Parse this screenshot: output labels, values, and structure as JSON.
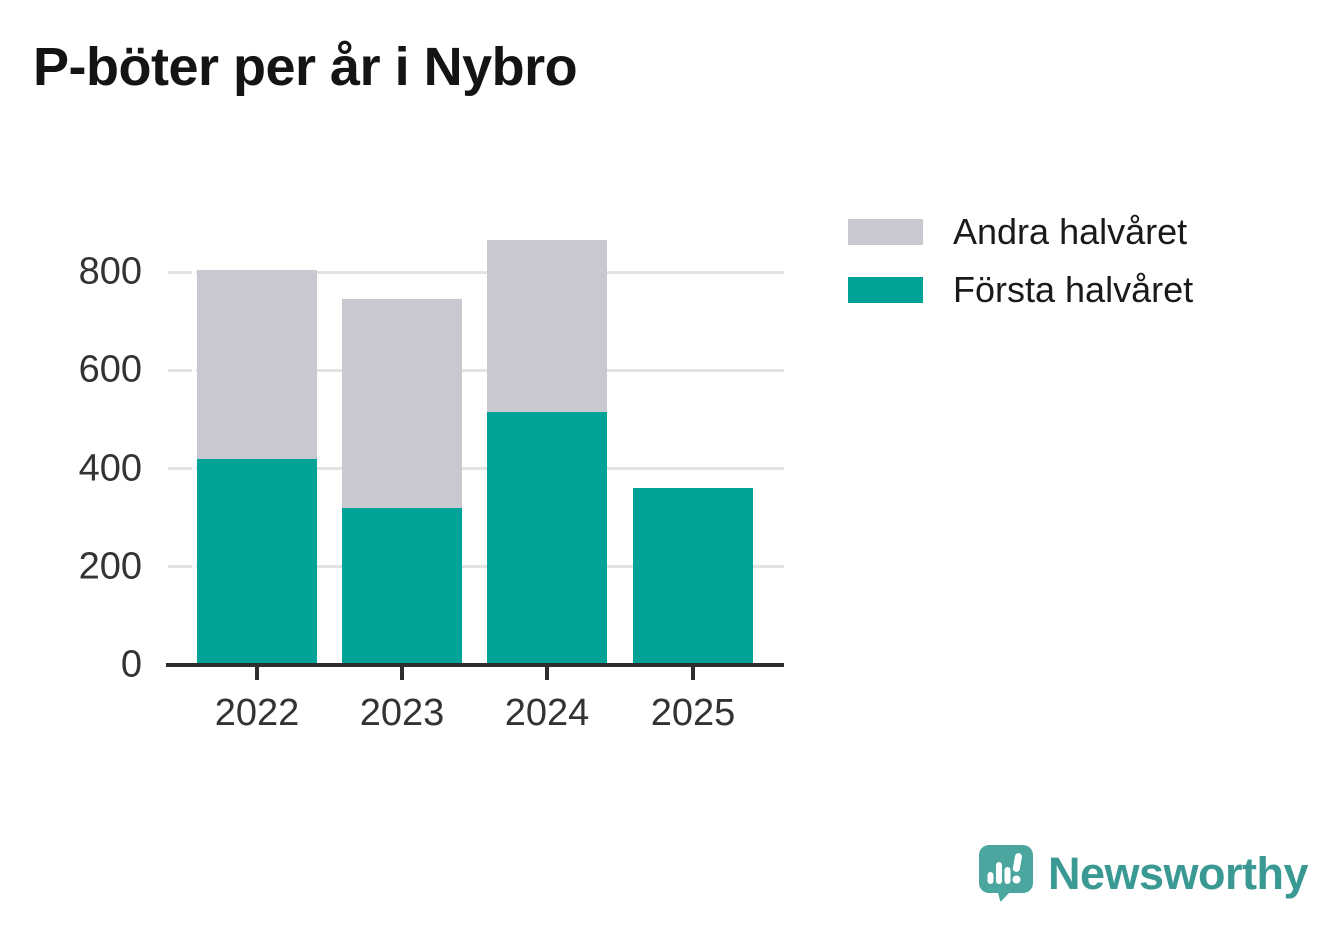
{
  "title": "P-böter per år i Nybro",
  "chart_data": {
    "type": "bar",
    "stacked": true,
    "title": "P-böter per år i Nybro",
    "categories": [
      "2022",
      "2023",
      "2024",
      "2025"
    ],
    "series": [
      {
        "name": "Första halvåret",
        "color": "#00A398",
        "values": [
          420,
          320,
          515,
          360
        ]
      },
      {
        "name": "Andra halvåret",
        "color": "#C9C8D1",
        "values": [
          385,
          425,
          350,
          0
        ]
      }
    ],
    "xlabel": "",
    "ylabel": "",
    "yticks": [
      0,
      200,
      400,
      600,
      800
    ],
    "ylim": [
      0,
      900
    ],
    "grid": true,
    "legend_position": "upper-right-outside",
    "legend_order": [
      "Andra halvåret",
      "Första halvåret"
    ]
  },
  "legend": {
    "items": [
      {
        "label": "Andra halvåret",
        "color": "#C9C8D1"
      },
      {
        "label": "Första halvåret",
        "color": "#00A398"
      }
    ]
  },
  "branding": {
    "name": "Newsworthy",
    "icon": "newsworthy-speech-bubble-chart-icon",
    "text_color": "#3A9A93",
    "icon_color": "#4AA69F"
  },
  "colors": {
    "first_half": "#00A398",
    "second_half": "#C9C8D1",
    "axis_line": "#2E2E2E",
    "gridline": "#E3E3E3",
    "axis_text": "#333333",
    "title_text": "#141414"
  }
}
